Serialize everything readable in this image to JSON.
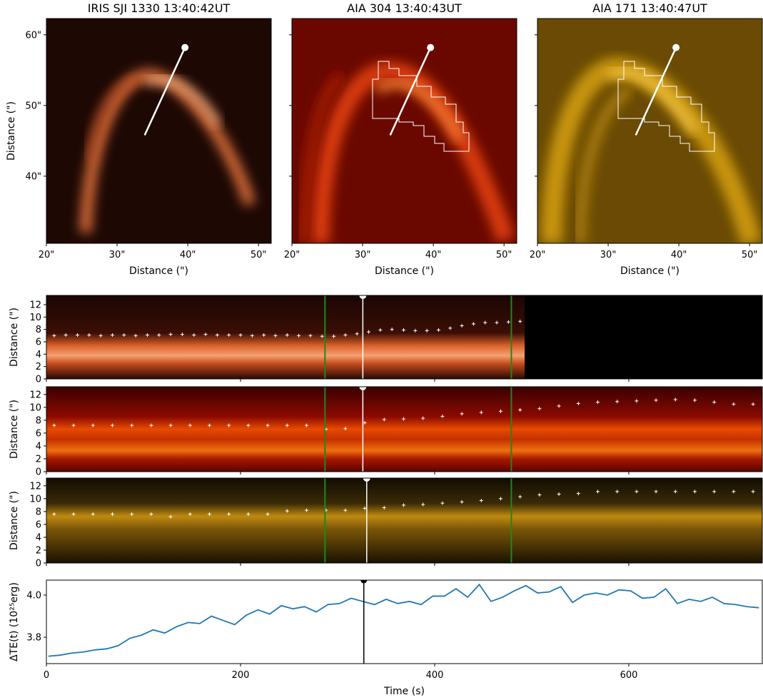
{
  "chart_data": [
    {
      "type": "image",
      "title": "IRIS SJI 1330 13:40:42UT",
      "x_label": "Distance (\")",
      "y_label": "Distance (\")",
      "xlim": [
        20,
        51.8
      ],
      "ylim": [
        30.5,
        62.3
      ],
      "xticks": [
        {
          "value": 20,
          "label": "20\""
        },
        {
          "value": 30,
          "label": "30\""
        },
        {
          "value": 40,
          "label": "40\""
        },
        {
          "value": 50,
          "label": "50\""
        }
      ],
      "yticks": [
        {
          "value": 40,
          "label": "40\""
        },
        {
          "value": 50,
          "label": "50\""
        },
        {
          "value": 60,
          "label": "60\""
        }
      ],
      "slit": {
        "x": [
          33.9,
          39.6
        ],
        "y": [
          45.8,
          58.2
        ]
      }
    },
    {
      "type": "image",
      "title": "AIA 304 13:40:43UT",
      "x_label": "Distance (\")",
      "xlim": [
        20,
        51.8
      ],
      "ylim": [
        30.5,
        62.3
      ],
      "xticks": [
        {
          "value": 20,
          "label": "20\""
        },
        {
          "value": 30,
          "label": "30\""
        },
        {
          "value": 40,
          "label": "40\""
        },
        {
          "value": 50,
          "label": "50\""
        }
      ],
      "yticks": [
        40,
        50,
        60
      ],
      "ytick_labels": false,
      "slit": {
        "x": [
          33.9,
          39.6
        ],
        "y": [
          45.8,
          58.2
        ]
      }
    },
    {
      "type": "image",
      "title": "AIA 171 13:40:47UT",
      "x_label": "Distance (\")",
      "xlim": [
        20,
        51.8
      ],
      "ylim": [
        30.5,
        62.3
      ],
      "xticks": [
        {
          "value": 20,
          "label": "20\""
        },
        {
          "value": 30,
          "label": "30\""
        },
        {
          "value": 40,
          "label": "40\""
        },
        {
          "value": 50,
          "label": "50\""
        }
      ],
      "yticks": [
        40,
        50,
        60
      ],
      "ytick_labels": false,
      "slit": {
        "x": [
          33.9,
          39.6
        ],
        "y": [
          45.8,
          58.2
        ]
      }
    },
    {
      "type": "scatter",
      "y_label": "Distance (\")",
      "xlim": [
        0,
        737.5
      ],
      "ylim": [
        0,
        13.5
      ],
      "xticks": [
        0,
        200,
        400,
        600
      ],
      "xtick_labels": false,
      "yticks": [
        0,
        2,
        4,
        6,
        8,
        10,
        12
      ],
      "points": {
        "color": "#ffffff",
        "x": [
          8,
          20,
          32,
          44,
          56,
          68,
          80,
          92,
          104,
          116,
          128,
          140,
          152,
          164,
          176,
          188,
          200,
          212,
          224,
          236,
          248,
          260,
          272,
          284,
          296,
          308,
          320,
          332,
          344,
          356,
          368,
          380,
          392,
          404,
          416,
          428,
          440,
          452,
          464,
          476,
          488
        ],
        "y": [
          7.0,
          7.1,
          7.1,
          7.1,
          7.0,
          7.1,
          7.1,
          7.0,
          7.1,
          7.1,
          7.2,
          7.2,
          7.1,
          7.2,
          7.1,
          7.1,
          7.1,
          7.0,
          7.1,
          7.0,
          7.1,
          7.0,
          7.0,
          6.9,
          6.9,
          7.1,
          7.3,
          7.6,
          7.9,
          8.0,
          7.9,
          7.8,
          7.8,
          7.9,
          8.2,
          8.6,
          8.9,
          9.1,
          9.1,
          9.2,
          9.3
        ]
      },
      "vlines": [
        287,
        479
      ],
      "vline_color": "#1a8a1a",
      "marker_time": 326
    },
    {
      "type": "scatter",
      "y_label": "Distance (\")",
      "xlim": [
        0,
        737.5
      ],
      "ylim": [
        0,
        13.2
      ],
      "xticks": [
        0,
        200,
        400,
        600
      ],
      "xtick_labels": false,
      "yticks": [
        0,
        2,
        4,
        6,
        8,
        10,
        12
      ],
      "points": {
        "color": "#ffffff",
        "x": [
          8,
          28,
          48,
          68,
          88,
          108,
          128,
          148,
          168,
          188,
          208,
          228,
          248,
          268,
          288,
          308,
          328,
          348,
          368,
          388,
          408,
          428,
          448,
          468,
          488,
          508,
          528,
          548,
          568,
          588,
          608,
          628,
          648,
          668,
          688,
          708,
          728
        ],
        "y": [
          7.2,
          7.2,
          7.2,
          7.2,
          7.2,
          7.2,
          7.2,
          7.2,
          7.2,
          7.2,
          7.2,
          7.2,
          7.2,
          7.2,
          6.6,
          6.7,
          7.6,
          8.1,
          8.2,
          8.3,
          8.6,
          9.0,
          9.2,
          9.4,
          9.6,
          9.8,
          10.2,
          10.6,
          10.8,
          10.9,
          11.0,
          11.1,
          11.2,
          11.1,
          10.8,
          10.5,
          10.5
        ]
      },
      "vlines": [
        287,
        479
      ],
      "vline_color": "#1a8a1a",
      "marker_time": 326
    },
    {
      "type": "scatter",
      "y_label": "Distance (\")",
      "xlim": [
        0,
        737.5
      ],
      "ylim": [
        0,
        13.2
      ],
      "xticks": [
        0,
        200,
        400,
        600
      ],
      "xtick_labels": false,
      "yticks": [
        0,
        2,
        4,
        6,
        8,
        10,
        12
      ],
      "points": {
        "color": "#ffffff",
        "x": [
          8,
          28,
          48,
          68,
          88,
          108,
          128,
          148,
          168,
          188,
          208,
          228,
          248,
          268,
          288,
          308,
          328,
          348,
          368,
          388,
          408,
          428,
          448,
          468,
          488,
          508,
          528,
          548,
          568,
          588,
          608,
          628,
          648,
          668,
          688,
          708,
          728
        ],
        "y": [
          7.6,
          7.6,
          7.6,
          7.6,
          7.6,
          7.6,
          7.2,
          7.6,
          7.6,
          7.6,
          7.6,
          7.6,
          8.1,
          8.2,
          8.2,
          8.2,
          8.5,
          8.6,
          9.0,
          9.1,
          9.3,
          9.5,
          9.7,
          10.0,
          10.3,
          10.6,
          10.7,
          10.8,
          11.1,
          11.1,
          11.1,
          11.1,
          11.1,
          11.1,
          11.1,
          11.1,
          11.1
        ]
      },
      "vlines": [
        287,
        479
      ],
      "vline_color": "#1a8a1a",
      "marker_time": 330
    },
    {
      "type": "line",
      "x_label": "Time (s)",
      "y_label": "ΔTE(t) (10²⁵erg)",
      "xlim": [
        0,
        737.5
      ],
      "ylim": [
        3.675,
        4.071
      ],
      "xticks": [
        0,
        200,
        400,
        600
      ],
      "yticks": [
        3.8,
        {
          "value": 4.0,
          "label": "4.0"
        }
      ],
      "color": "#1f77b4",
      "marker_time": 327,
      "x": [
        2,
        14,
        26,
        38,
        50,
        62,
        74,
        86,
        98,
        110,
        122,
        134,
        146,
        158,
        170,
        182,
        194,
        206,
        218,
        230,
        242,
        254,
        266,
        278,
        290,
        302,
        314,
        326,
        338,
        350,
        362,
        374,
        386,
        398,
        410,
        422,
        434,
        446,
        458,
        470,
        482,
        494,
        506,
        518,
        530,
        542,
        554,
        566,
        578,
        590,
        602,
        614,
        626,
        638,
        650,
        662,
        674,
        686,
        698,
        710,
        722,
        734
      ],
      "values": [
        3.71,
        3.715,
        3.725,
        3.73,
        3.74,
        3.745,
        3.76,
        3.795,
        3.81,
        3.835,
        3.82,
        3.85,
        3.87,
        3.865,
        3.9,
        3.88,
        3.86,
        3.905,
        3.93,
        3.91,
        3.95,
        3.935,
        3.945,
        3.92,
        3.955,
        3.96,
        3.985,
        3.97,
        3.955,
        3.98,
        3.96,
        3.97,
        3.955,
        3.995,
        3.995,
        4.03,
        3.99,
        4.05,
        3.97,
        3.99,
        4.02,
        4.045,
        4.01,
        4.015,
        4.04,
        3.965,
        4.0,
        4.01,
        4.0,
        4.025,
        4.02,
        3.985,
        3.99,
        4.03,
        3.96,
        3.98,
        3.97,
        3.99,
        3.96,
        3.955,
        3.945,
        3.94
      ]
    }
  ]
}
